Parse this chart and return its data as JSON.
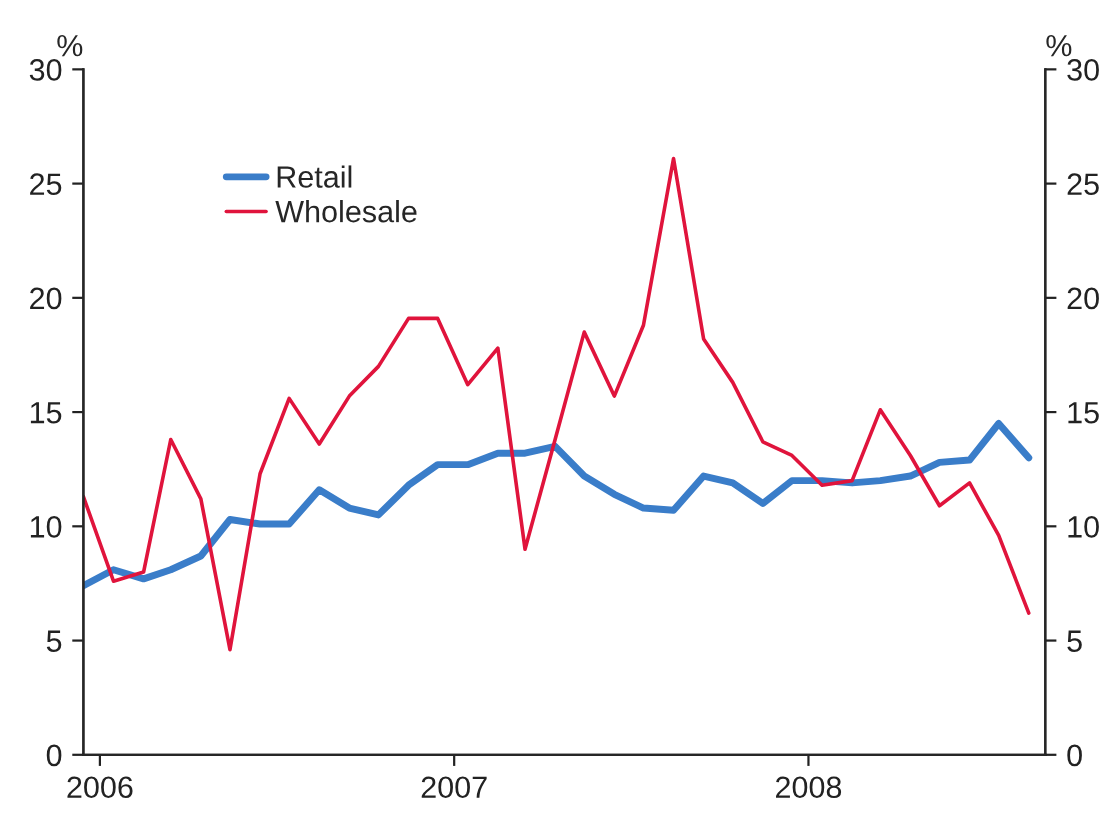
{
  "chart_data": {
    "type": "line",
    "x": [
      "2005-12-15",
      "2006-01-15",
      "2006-02-15",
      "2006-03-15",
      "2006-04-15",
      "2006-05-15",
      "2006-06-15",
      "2006-07-15",
      "2006-08-15",
      "2006-09-15",
      "2006-10-15",
      "2006-11-15",
      "2006-12-15",
      "2007-01-15",
      "2007-02-15",
      "2007-03-15",
      "2007-04-15",
      "2007-05-15",
      "2007-06-15",
      "2007-07-15",
      "2007-08-15",
      "2007-09-15",
      "2007-10-15",
      "2007-11-15",
      "2007-12-15",
      "2008-01-15",
      "2008-02-15",
      "2008-03-15",
      "2008-04-15",
      "2008-05-15",
      "2008-06-15",
      "2008-07-15",
      "2008-08-15"
    ],
    "series": [
      {
        "name": "Retail",
        "color": "#3a7dc9",
        "values": [
          7.4,
          8.1,
          7.7,
          8.1,
          8.7,
          10.3,
          10.1,
          10.1,
          11.6,
          10.8,
          10.5,
          11.8,
          12.7,
          12.7,
          13.2,
          13.2,
          13.5,
          12.2,
          11.4,
          10.8,
          10.7,
          12.2,
          11.9,
          11.0,
          12.0,
          12.0,
          11.9,
          12.0,
          12.2,
          12.8,
          12.9,
          14.5,
          13.0
        ]
      },
      {
        "name": "Wholesale",
        "color": "#e0143c",
        "values": [
          11.3,
          7.6,
          8.0,
          13.8,
          11.2,
          4.6,
          12.3,
          15.6,
          13.6,
          15.7,
          17.0,
          19.1,
          19.1,
          16.2,
          17.8,
          9.0,
          13.8,
          18.5,
          15.7,
          18.8,
          26.1,
          18.2,
          16.3,
          13.7,
          13.1,
          11.8,
          12.0,
          15.1,
          13.1,
          10.9,
          11.9,
          9.6,
          6.2
        ]
      }
    ],
    "xlim": [
      "2005-12-15",
      "2008-09-01"
    ],
    "xticks": [
      {
        "value": "2006-01-01",
        "label": "2006"
      },
      {
        "value": "2007-01-01",
        "label": "2007"
      },
      {
        "value": "2008-01-01",
        "label": "2008"
      }
    ],
    "ylabel": "%",
    "y2label": "%",
    "ylim": [
      0,
      30
    ],
    "yticks": [
      0,
      5,
      10,
      15,
      20,
      25,
      30
    ],
    "y2lim": [
      0,
      30
    ],
    "y2ticks": [
      0,
      5,
      10,
      15,
      20,
      25,
      30
    ],
    "legend": "top left",
    "grid": false
  }
}
